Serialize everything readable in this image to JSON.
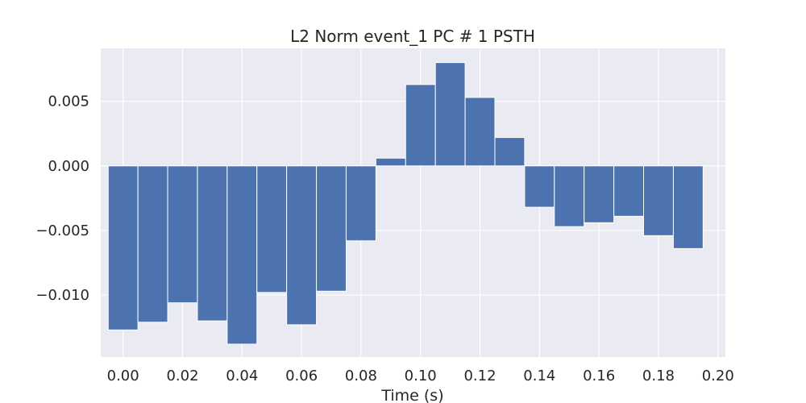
{
  "chart_data": {
    "type": "bar",
    "title": "L2 Norm event_1 PC # 1 PSTH",
    "xlabel": "Time (s)",
    "ylabel": "",
    "bin_width": 0.01,
    "x": [
      0.0,
      0.01,
      0.02,
      0.03,
      0.04,
      0.05,
      0.06,
      0.07,
      0.08,
      0.09,
      0.1,
      0.11,
      0.12,
      0.13,
      0.14,
      0.15,
      0.16,
      0.17,
      0.18,
      0.19
    ],
    "values": [
      -0.0127,
      -0.0121,
      -0.0106,
      -0.012,
      -0.0138,
      -0.0098,
      -0.0123,
      -0.0097,
      -0.0058,
      0.0006,
      0.0063,
      0.008,
      0.0053,
      0.0022,
      -0.0032,
      -0.0047,
      -0.0044,
      -0.0039,
      -0.0054,
      -0.0064
    ],
    "xlim": [
      -0.0075,
      0.2025
    ],
    "ylim": [
      -0.0148,
      0.0091
    ],
    "xticks": [
      0.0,
      0.02,
      0.04,
      0.06,
      0.08,
      0.1,
      0.12,
      0.14,
      0.16,
      0.18,
      0.2
    ],
    "xtick_labels": [
      "0.00",
      "0.02",
      "0.04",
      "0.06",
      "0.08",
      "0.10",
      "0.12",
      "0.14",
      "0.16",
      "0.18",
      "0.20"
    ],
    "yticks": [
      -0.01,
      -0.005,
      0.0,
      0.005
    ],
    "ytick_labels": [
      "−0.010",
      "−0.005",
      "0.000",
      "0.005"
    ],
    "grid": true,
    "colors": {
      "bar": "#4c72b0",
      "bar_edge": "#ffffff",
      "plot_background": "#eaeaf2",
      "grid": "#ffffff",
      "text": "#262626"
    }
  }
}
